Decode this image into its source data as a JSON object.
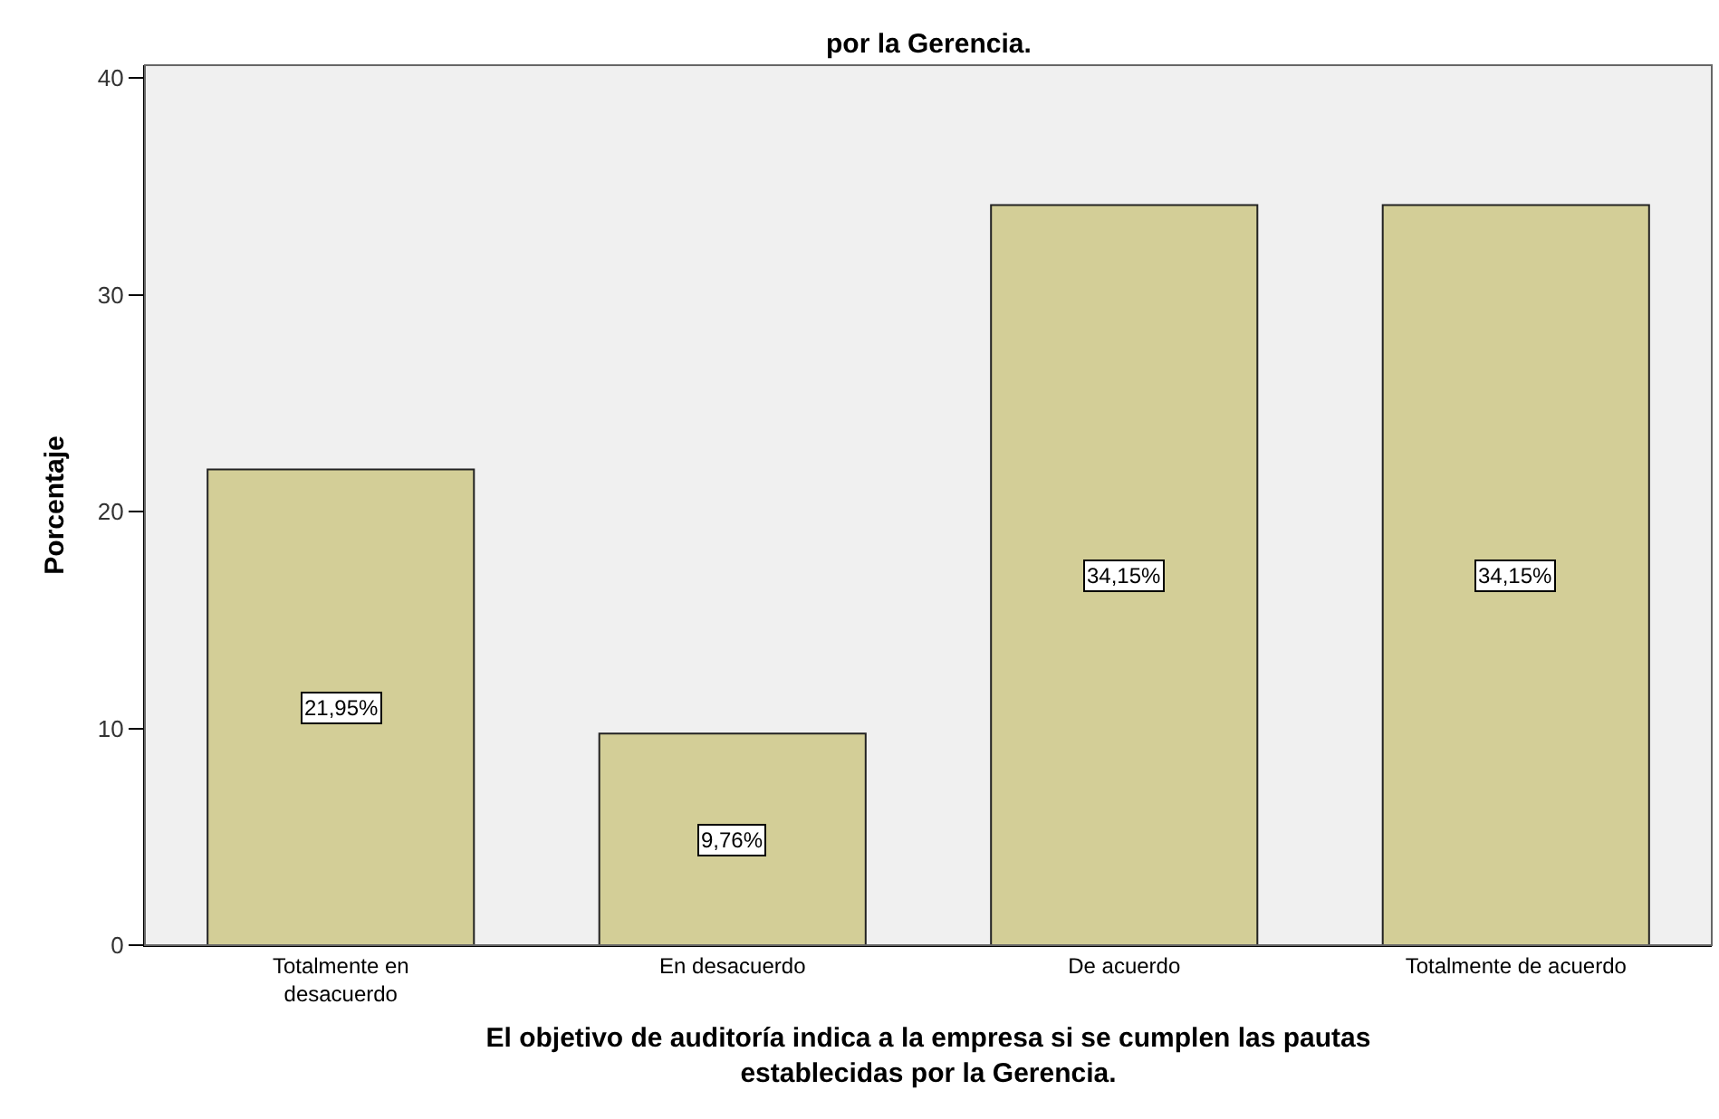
{
  "chart_data": {
    "type": "bar",
    "title": "por la Gerencia.",
    "xlabel": "El objetivo de auditoría indica a la empresa si se cumplen las pautas\nestablecidas por la Gerencia.",
    "ylabel": "Porcentaje",
    "categories": [
      "Totalmente en\ndesacuerdo",
      "En desacuerdo",
      "De acuerdo",
      "Totalmente de acuerdo"
    ],
    "values": [
      21.95,
      9.76,
      34.15,
      34.15
    ],
    "value_labels": [
      "21,95%",
      "9,76%",
      "34,15%",
      "34,15%"
    ],
    "color": "#d3ce97",
    "ylim": [
      0,
      40.6
    ],
    "yticks": [
      0,
      10,
      20,
      30,
      40
    ],
    "grid": false
  }
}
